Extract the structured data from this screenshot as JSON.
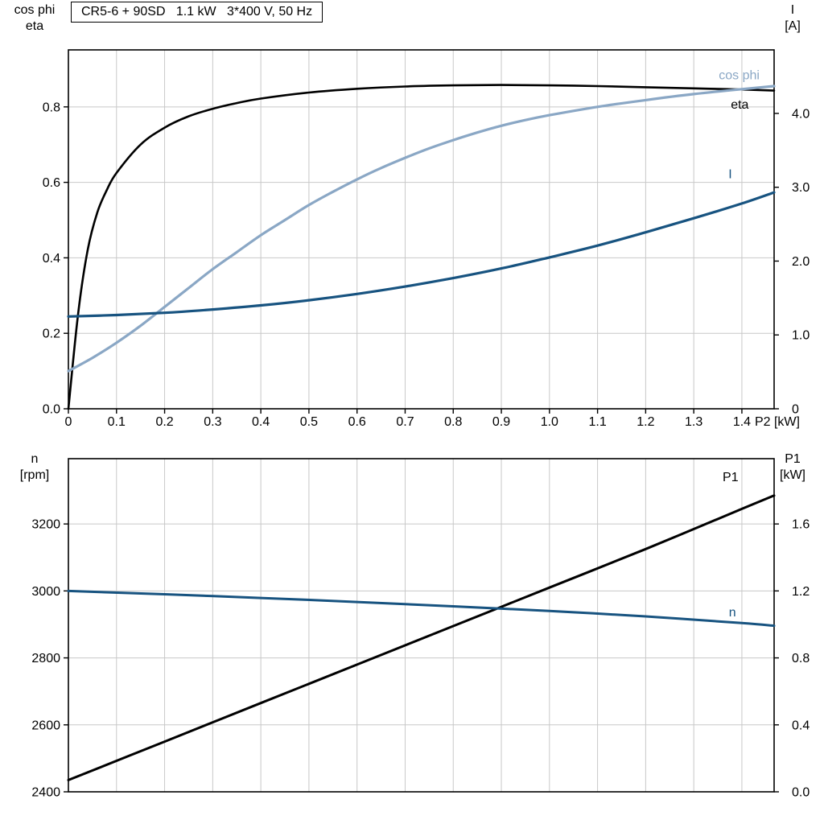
{
  "title_box": {
    "text": "CR5-6 + 90SD   1.1 kW   3*400 V, 50 Hz"
  },
  "colors": {
    "axis": "#000000",
    "grid": "#c8c8c8",
    "eta": "#000000",
    "cos_phi": "#8aa7c5",
    "current": "#175380",
    "p1": "#000000",
    "speed": "#175380"
  },
  "axis_corner_labels": {
    "top_left": [
      "cos phi",
      "eta"
    ],
    "top_right": [
      "I",
      "[A]"
    ],
    "bottom_left": [
      "n",
      "[rpm]"
    ],
    "bottom_right": [
      "P1",
      "[kW]"
    ]
  },
  "chart_data": [
    {
      "type": "line",
      "id": "motor-electrical-curves",
      "title": "CR5-6 + 90SD   1.1 kW   3*400 V, 50 Hz",
      "xlabel": "P2 [kW]",
      "grid": true,
      "show_x_tick_labels": true,
      "x_axis": {
        "min": 0,
        "max": 1.467,
        "tick_values": [
          0,
          0.1,
          0.2,
          0.3,
          0.4,
          0.5,
          0.6,
          0.7,
          0.8,
          0.9,
          1.0,
          1.1,
          1.2,
          1.3,
          1.4
        ],
        "tick_labels": [
          "0",
          "0.1",
          "0.2",
          "0.3",
          "0.4",
          "0.5",
          "0.6",
          "0.7",
          "0.8",
          "0.9",
          "1.0",
          "1.1",
          "1.2",
          "1.3",
          "1.4"
        ]
      },
      "y_left": {
        "label": "cos phi / eta",
        "min": 0,
        "max": 0.951,
        "tick_values": [
          0,
          0.2,
          0.4,
          0.6,
          0.8
        ],
        "tick_labels": [
          "0.0",
          "0.2",
          "0.4",
          "0.6",
          "0.8"
        ]
      },
      "y_right": {
        "label": "I [A]",
        "min": 0,
        "max": 4.86,
        "tick_values": [
          0,
          1,
          2,
          3,
          4
        ],
        "tick_labels": [
          "0",
          "1.0",
          "2.0",
          "3.0",
          "4.0"
        ]
      },
      "series": [
        {
          "id": "eta",
          "name": "eta",
          "axis": "left",
          "color": "#000000",
          "stroke_width": 2.6,
          "x": [
            0,
            0.02,
            0.04,
            0.06,
            0.08,
            0.1,
            0.15,
            0.2,
            0.25,
            0.3,
            0.35,
            0.4,
            0.5,
            0.6,
            0.7,
            0.8,
            0.9,
            1.0,
            1.1,
            1.2,
            1.3,
            1.4,
            1.467
          ],
          "y": [
            0,
            0.25,
            0.42,
            0.52,
            0.58,
            0.625,
            0.7,
            0.745,
            0.775,
            0.795,
            0.81,
            0.822,
            0.838,
            0.848,
            0.854,
            0.857,
            0.858,
            0.857,
            0.855,
            0.852,
            0.849,
            0.846,
            0.843
          ],
          "label": {
            "text": "eta",
            "x": 1.377,
            "y": 0.795
          }
        },
        {
          "id": "cos-phi",
          "name": "cos phi",
          "axis": "left",
          "color": "#8aa7c5",
          "stroke_width": 3.2,
          "x": [
            0,
            0.05,
            0.1,
            0.15,
            0.2,
            0.25,
            0.3,
            0.35,
            0.4,
            0.45,
            0.5,
            0.55,
            0.6,
            0.65,
            0.7,
            0.75,
            0.8,
            0.85,
            0.9,
            0.95,
            1.0,
            1.1,
            1.2,
            1.3,
            1.4,
            1.467
          ],
          "y": [
            0.1,
            0.135,
            0.175,
            0.22,
            0.27,
            0.32,
            0.37,
            0.415,
            0.46,
            0.5,
            0.54,
            0.575,
            0.608,
            0.638,
            0.665,
            0.69,
            0.712,
            0.732,
            0.75,
            0.765,
            0.778,
            0.8,
            0.818,
            0.834,
            0.847,
            0.855
          ],
          "label": {
            "text": "cos phi",
            "x": 1.352,
            "y": 0.873
          }
        },
        {
          "id": "current",
          "name": "I",
          "axis": "right",
          "color": "#175380",
          "stroke_width": 3.2,
          "x": [
            0,
            0.1,
            0.2,
            0.3,
            0.4,
            0.5,
            0.6,
            0.7,
            0.8,
            0.9,
            1.0,
            1.1,
            1.2,
            1.3,
            1.4,
            1.467
          ],
          "y": [
            1.25,
            1.27,
            1.3,
            1.345,
            1.4,
            1.47,
            1.555,
            1.655,
            1.77,
            1.9,
            2.05,
            2.21,
            2.39,
            2.58,
            2.78,
            2.93
          ],
          "label": {
            "text": "I",
            "x": 1.372,
            "y": 3.12
          }
        }
      ]
    },
    {
      "type": "line",
      "id": "speed-power-curves",
      "title": "",
      "xlabel": "",
      "grid": true,
      "show_x_tick_labels": false,
      "x_axis": {
        "min": 0,
        "max": 1.467,
        "tick_values": [
          0,
          0.1,
          0.2,
          0.3,
          0.4,
          0.5,
          0.6,
          0.7,
          0.8,
          0.9,
          1.0,
          1.1,
          1.2,
          1.3,
          1.4
        ],
        "tick_labels": []
      },
      "y_left": {
        "label": "n [rpm]",
        "min": 2400,
        "max": 3395,
        "tick_values": [
          2400,
          2600,
          2800,
          3000,
          3200
        ],
        "tick_labels": [
          "2400",
          "2600",
          "2800",
          "3000",
          "3200"
        ]
      },
      "y_right": {
        "label": "P1 [kW]",
        "min": 0,
        "max": 1.99,
        "tick_values": [
          0,
          0.4,
          0.8,
          1.2,
          1.6
        ],
        "tick_labels": [
          "0.0",
          "0.4",
          "0.8",
          "1.2",
          "1.6"
        ]
      },
      "series": [
        {
          "id": "p1",
          "name": "P1",
          "axis": "right",
          "color": "#000000",
          "stroke_width": 3,
          "x": [
            0,
            0.2,
            0.4,
            0.6,
            0.8,
            1.0,
            1.2,
            1.4,
            1.467
          ],
          "y": [
            0.07,
            0.3,
            0.53,
            0.76,
            0.99,
            1.22,
            1.45,
            1.69,
            1.77
          ],
          "label": {
            "text": "P1",
            "x": 1.36,
            "y": 1.855
          }
        },
        {
          "id": "speed",
          "name": "n",
          "axis": "left",
          "color": "#175380",
          "stroke_width": 3,
          "x": [
            0,
            0.2,
            0.4,
            0.6,
            0.8,
            1.0,
            1.2,
            1.4,
            1.467
          ],
          "y": [
            3000,
            2990,
            2979,
            2967,
            2954,
            2940,
            2924,
            2904,
            2896
          ],
          "label": {
            "text": "n",
            "x": 1.373,
            "y": 2924
          }
        }
      ]
    }
  ]
}
